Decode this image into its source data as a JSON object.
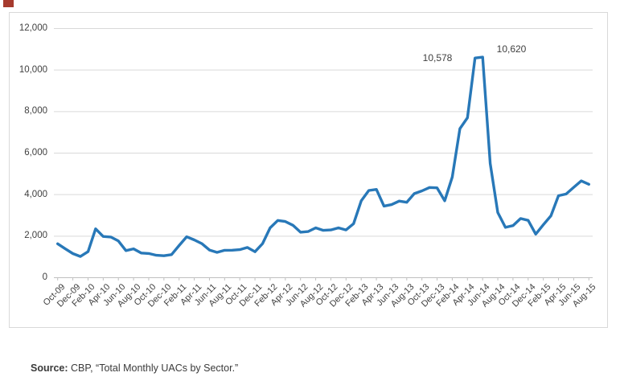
{
  "chart_data": {
    "type": "line",
    "title": "",
    "xlabel": "",
    "ylabel": "",
    "ylim": [
      0,
      12000
    ],
    "grid": "horizontal",
    "legend": "none",
    "line_color": "#2878b8",
    "gridline_color": "#d9d9d9",
    "axis_color": "#c0c0c0",
    "x": [
      "Oct-09",
      "Nov-09",
      "Dec-09",
      "Jan-10",
      "Feb-10",
      "Mar-10",
      "Apr-10",
      "May-10",
      "Jun-10",
      "Jul-10",
      "Aug-10",
      "Sep-10",
      "Oct-10",
      "Nov-10",
      "Dec-10",
      "Jan-11",
      "Feb-11",
      "Mar-11",
      "Apr-11",
      "May-11",
      "Jun-11",
      "Jul-11",
      "Aug-11",
      "Sep-11",
      "Oct-11",
      "Nov-11",
      "Dec-11",
      "Jan-12",
      "Feb-12",
      "Mar-12",
      "Apr-12",
      "May-12",
      "Jun-12",
      "Jul-12",
      "Aug-12",
      "Sep-12",
      "Oct-12",
      "Nov-12",
      "Dec-12",
      "Jan-13",
      "Feb-13",
      "Mar-13",
      "Apr-13",
      "May-13",
      "Jun-13",
      "Jul-13",
      "Aug-13",
      "Sep-13",
      "Oct-13",
      "Nov-13",
      "Dec-13",
      "Jan-14",
      "Feb-14",
      "Mar-14",
      "Apr-14",
      "May-14",
      "Jun-14",
      "Jul-14",
      "Aug-14",
      "Sep-14",
      "Oct-14",
      "Nov-14",
      "Dec-14",
      "Jan-15",
      "Feb-15",
      "Mar-15",
      "Apr-15",
      "May-15",
      "Jun-15",
      "Jul-15",
      "Aug-15"
    ],
    "values": [
      1635,
      1390,
      1160,
      1020,
      1255,
      2355,
      1985,
      1960,
      1770,
      1305,
      1390,
      1190,
      1165,
      1080,
      1055,
      1110,
      1550,
      1970,
      1820,
      1640,
      1330,
      1220,
      1320,
      1325,
      1350,
      1455,
      1250,
      1640,
      2400,
      2755,
      2705,
      2525,
      2190,
      2220,
      2400,
      2280,
      2300,
      2400,
      2300,
      2600,
      3700,
      4200,
      4250,
      3450,
      3520,
      3690,
      3630,
      4050,
      4181,
      4344,
      4327,
      3706,
      4845,
      7176,
      7702,
      10578,
      10620,
      5501,
      3141,
      2424,
      2510,
      2850,
      2760,
      2100,
      2550,
      2980,
      3950,
      4030,
      4350,
      4660,
      4500
    ],
    "x_tick_labels": [
      "Oct-09",
      "Dec-09",
      "Feb-10",
      "Apr-10",
      "Jun-10",
      "Aug-10",
      "Oct-10",
      "Dec-10",
      "Feb-11",
      "Apr-11",
      "Jun-11",
      "Aug-11",
      "Oct-11",
      "Dec-11",
      "Feb-12",
      "Apr-12",
      "Jun-12",
      "Aug-12",
      "Oct-12",
      "Dec-12",
      "Feb-13",
      "Apr-13",
      "Jun-13",
      "Aug-13",
      "Oct-13",
      "Dec-13",
      "Feb-14",
      "Apr-14",
      "Jun-14",
      "Aug-14",
      "Oct-14",
      "Dec-14",
      "Feb-15",
      "Apr-15",
      "Jun-15",
      "Aug-15"
    ],
    "y_tick_labels": [
      "0",
      "2,000",
      "4,000",
      "6,000",
      "8,000",
      "10,000",
      "12,000"
    ],
    "y_tick_values": [
      0,
      2000,
      4000,
      6000,
      8000,
      10000,
      12000
    ],
    "annotations": [
      {
        "label": "10,578",
        "month": "May-14"
      },
      {
        "label": "10,620",
        "month": "Jun-14"
      }
    ]
  },
  "source": {
    "label": "Source:",
    "text": " CBP, “Total Monthly UACs by Sector.”"
  }
}
